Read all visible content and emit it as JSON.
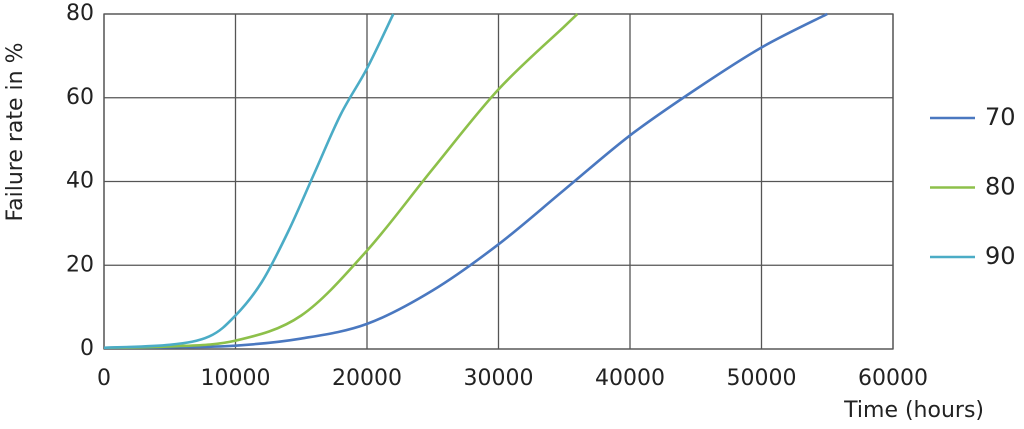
{
  "chart_data": {
    "type": "line",
    "xlabel": "Time (hours)",
    "ylabel": "Failure rate in %",
    "xlim": [
      0,
      60000
    ],
    "xticks": [
      0,
      10000,
      20000,
      30000,
      40000,
      50000,
      60000
    ],
    "ylim": [
      0,
      80
    ],
    "yticks": [
      0,
      20,
      40,
      60,
      80
    ],
    "grid": true,
    "legend": "right",
    "series": [
      {
        "name": "70",
        "color": "#4a78c0",
        "x": [
          0,
          5000,
          10000,
          15000,
          20000,
          25000,
          30000,
          35000,
          40000,
          45000,
          50000,
          55000
        ],
        "values": [
          0.3,
          0.4,
          0.8,
          2.5,
          6,
          14,
          25,
          38,
          51,
          62,
          72,
          80
        ]
      },
      {
        "name": "80",
        "color": "#8dc04a",
        "x": [
          0,
          5000,
          10000,
          15000,
          20000,
          25000,
          30000,
          35000,
          36000
        ],
        "values": [
          0.3,
          0.6,
          2,
          8,
          23.5,
          43,
          62,
          77,
          80
        ]
      },
      {
        "name": "90",
        "color": "#4bacc6",
        "x": [
          0,
          5000,
          8000,
          10000,
          12000,
          14000,
          16000,
          18000,
          20000,
          22000
        ],
        "values": [
          0.3,
          1,
          3,
          8,
          16,
          28,
          42,
          56,
          67,
          80
        ]
      }
    ]
  }
}
